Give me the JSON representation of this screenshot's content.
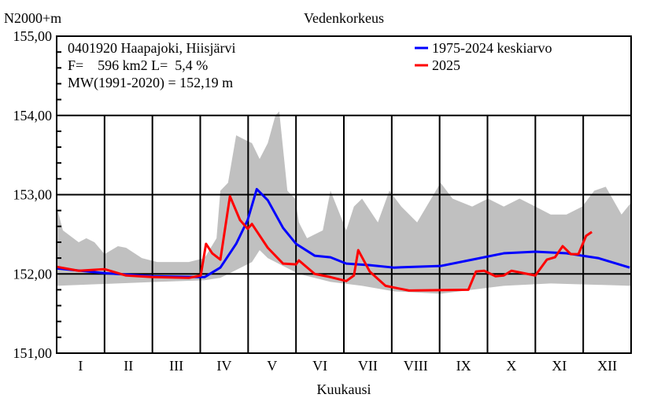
{
  "chart_data": {
    "type": "line",
    "title": "Vedenkorkeus",
    "ylabel": "N2000+m",
    "xlabel": "Kuukausi",
    "ylim": [
      151,
      155
    ],
    "xlim": [
      0,
      12
    ],
    "grid": true,
    "legend_position": "top-right",
    "yticks": [
      {
        "value": 155,
        "label": "155,00"
      },
      {
        "value": 154,
        "label": "154,00"
      },
      {
        "value": 153,
        "label": "153,00"
      },
      {
        "value": 152,
        "label": "152,00"
      },
      {
        "value": 151,
        "label": "151,00"
      }
    ],
    "categories": [
      "I",
      "II",
      "III",
      "IV",
      "V",
      "VI",
      "VII",
      "VIII",
      "IX",
      "X",
      "XI",
      "XII"
    ],
    "info_lines": [
      "0401920 Haapajoki, Hiisjärvi",
      "F=    596 km2 L=  5,4 %",
      "MW(1991-2020) = 152,19 m"
    ],
    "series": [
      {
        "name": "1975-2024 keskiarvo",
        "color": "#0000ff",
        "x": [
          0,
          1.0,
          2.0,
          3.09,
          3.42,
          3.75,
          3.99,
          4.18,
          4.41,
          4.73,
          5.0,
          5.39,
          5.72,
          6.05,
          6.54,
          7.04,
          8.02,
          8.68,
          9.34,
          10.0,
          10.65,
          11.31,
          11.97
        ],
        "y": [
          152.07,
          152.01,
          151.97,
          151.96,
          152.08,
          152.38,
          152.68,
          153.07,
          152.93,
          152.58,
          152.38,
          152.23,
          152.21,
          152.13,
          152.11,
          152.08,
          152.1,
          152.18,
          152.26,
          152.28,
          152.26,
          152.2,
          152.08
        ]
      },
      {
        "name": "2025",
        "color": "#ff0000",
        "x": [
          0,
          0.46,
          1.0,
          1.45,
          2.0,
          2.76,
          3.01,
          3.12,
          3.25,
          3.42,
          3.62,
          3.83,
          3.99,
          4.08,
          4.41,
          4.73,
          5.0,
          5.06,
          5.39,
          5.72,
          6.05,
          6.21,
          6.3,
          6.54,
          6.87,
          7.36,
          8.6,
          8.76,
          8.93,
          9.17,
          9.34,
          9.5,
          10.0,
          10.24,
          10.41,
          10.57,
          10.74,
          10.9,
          11.06,
          11.18
        ],
        "y": [
          152.09,
          152.04,
          152.06,
          151.98,
          151.96,
          151.95,
          151.98,
          152.38,
          152.26,
          152.18,
          152.98,
          152.68,
          152.57,
          152.63,
          152.33,
          152.13,
          152.12,
          152.17,
          152.0,
          151.96,
          151.91,
          151.98,
          152.3,
          152.03,
          151.85,
          151.79,
          151.8,
          152.03,
          152.04,
          151.97,
          151.98,
          152.04,
          151.98,
          152.18,
          152.21,
          152.35,
          152.25,
          152.25,
          152.48,
          152.53
        ]
      }
    ],
    "range_band": {
      "color": "#c0c0c0",
      "upper": {
        "x": [
          0,
          0.13,
          0.46,
          0.62,
          0.79,
          1.0,
          1.28,
          1.45,
          1.78,
          2.1,
          2.76,
          3.09,
          3.34,
          3.42,
          3.58,
          3.75,
          3.91,
          4.08,
          4.24,
          4.41,
          4.57,
          4.65,
          4.82,
          4.98,
          5.06,
          5.23,
          5.56,
          5.72,
          6.05,
          6.21,
          6.38,
          6.71,
          6.95,
          7.2,
          7.53,
          8.02,
          8.27,
          8.68,
          9.01,
          9.34,
          9.67,
          10.0,
          10.32,
          10.65,
          10.98,
          11.23,
          11.47,
          11.8,
          12.0
        ],
        "y": [
          152.85,
          152.55,
          152.4,
          152.45,
          152.4,
          152.25,
          152.35,
          152.33,
          152.2,
          152.15,
          152.15,
          152.2,
          152.45,
          153.05,
          153.15,
          153.75,
          153.7,
          153.65,
          153.45,
          153.65,
          154.0,
          154.05,
          153.05,
          152.95,
          152.65,
          152.45,
          152.55,
          153.05,
          152.55,
          152.85,
          152.95,
          152.65,
          153.05,
          152.85,
          152.65,
          153.15,
          152.95,
          152.85,
          152.95,
          152.85,
          152.95,
          152.85,
          152.75,
          152.75,
          152.85,
          153.05,
          153.1,
          152.75,
          152.9
        ]
      },
      "lower": {
        "x": [
          0,
          2.1,
          3.09,
          3.42,
          3.75,
          4.08,
          4.24,
          4.41,
          4.73,
          5.06,
          5.72,
          6.38,
          7.04,
          8.02,
          8.68,
          9.34,
          10.32,
          12.0
        ],
        "y": [
          151.85,
          151.9,
          151.92,
          151.95,
          152.05,
          152.15,
          152.3,
          152.2,
          152.1,
          152.0,
          151.9,
          151.85,
          151.78,
          151.75,
          151.8,
          151.85,
          151.88,
          151.85
        ]
      }
    }
  }
}
